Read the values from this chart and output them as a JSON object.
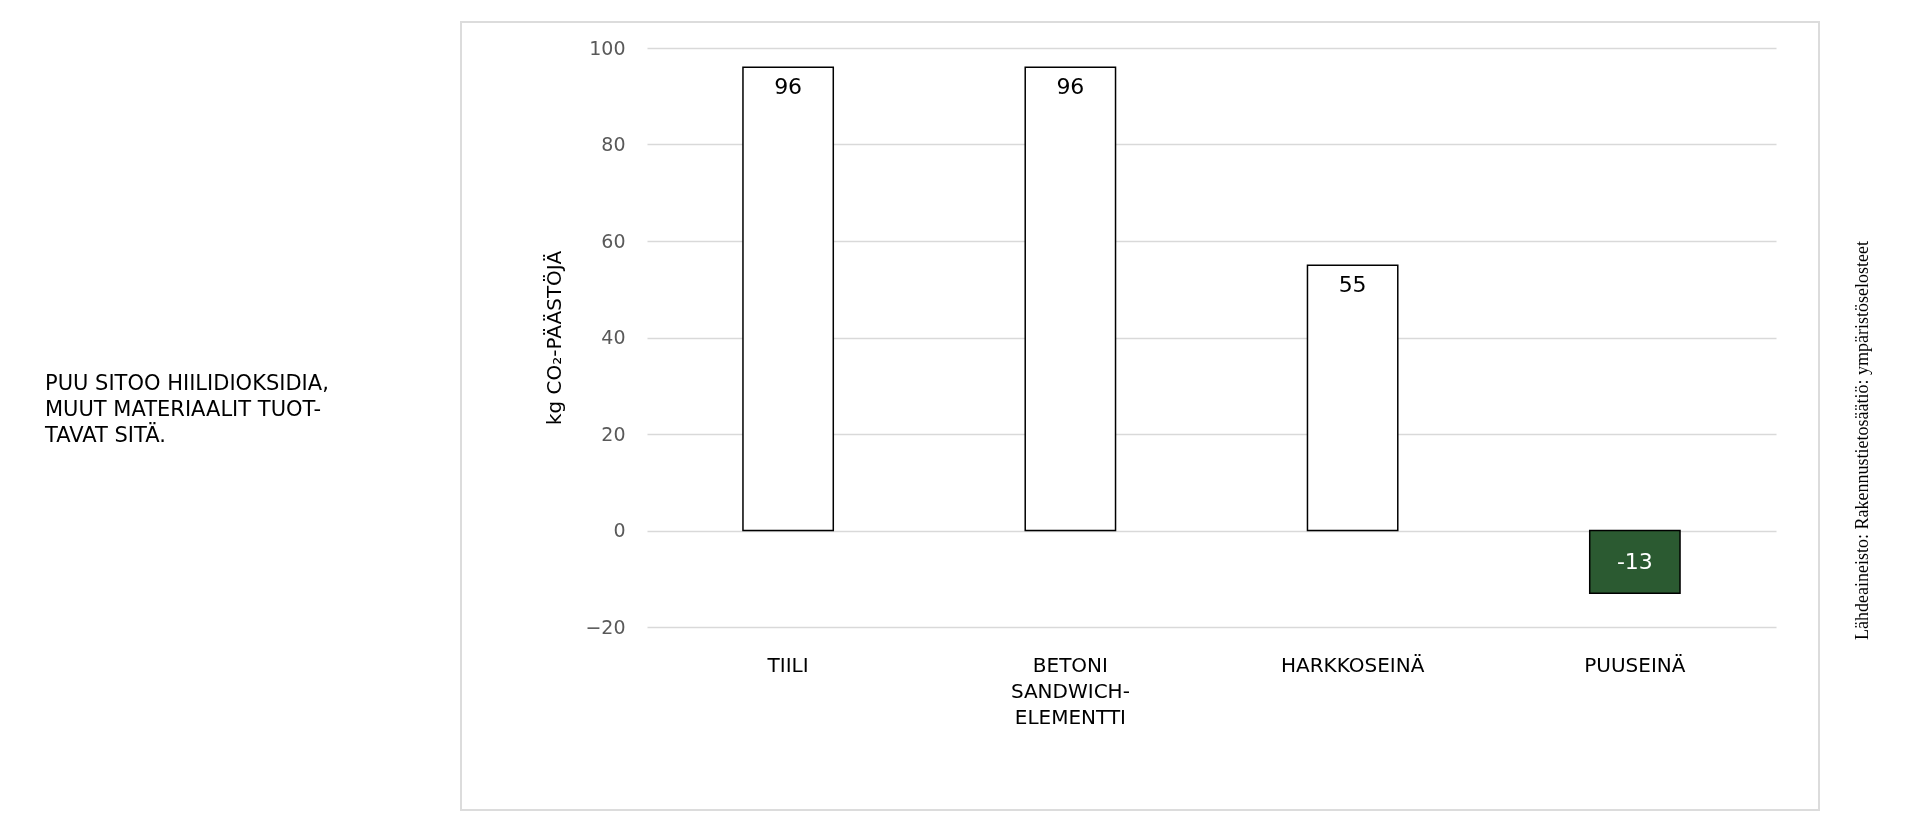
{
  "chart_data": {
    "type": "bar",
    "title": "PUU SITOO HIILIDIOKSIDIA, MUUT MATERIAALIT TUOT-TAVAT SITÄ.",
    "ylabel": "kg CO₂-PÄÄSTÖJÄ",
    "categories": [
      "TIILI",
      "BETONI SANDWICH-ELEMENTTI",
      "HARKKOSEINÄ",
      "PUUSEINÄ"
    ],
    "values": [
      96,
      96,
      55,
      -13
    ],
    "colors": [
      "#ffffff",
      "#ffffff",
      "#ffffff",
      "#2b5a31"
    ],
    "ylim": [
      -20,
      100
    ],
    "yticks": [
      -20,
      0,
      20,
      40,
      60,
      80,
      100
    ],
    "grid": "y",
    "data_labels": true,
    "annotations": [
      "Lähdeaineisto: Rakennustietosäätiö: ympäristöselosteet"
    ]
  }
}
